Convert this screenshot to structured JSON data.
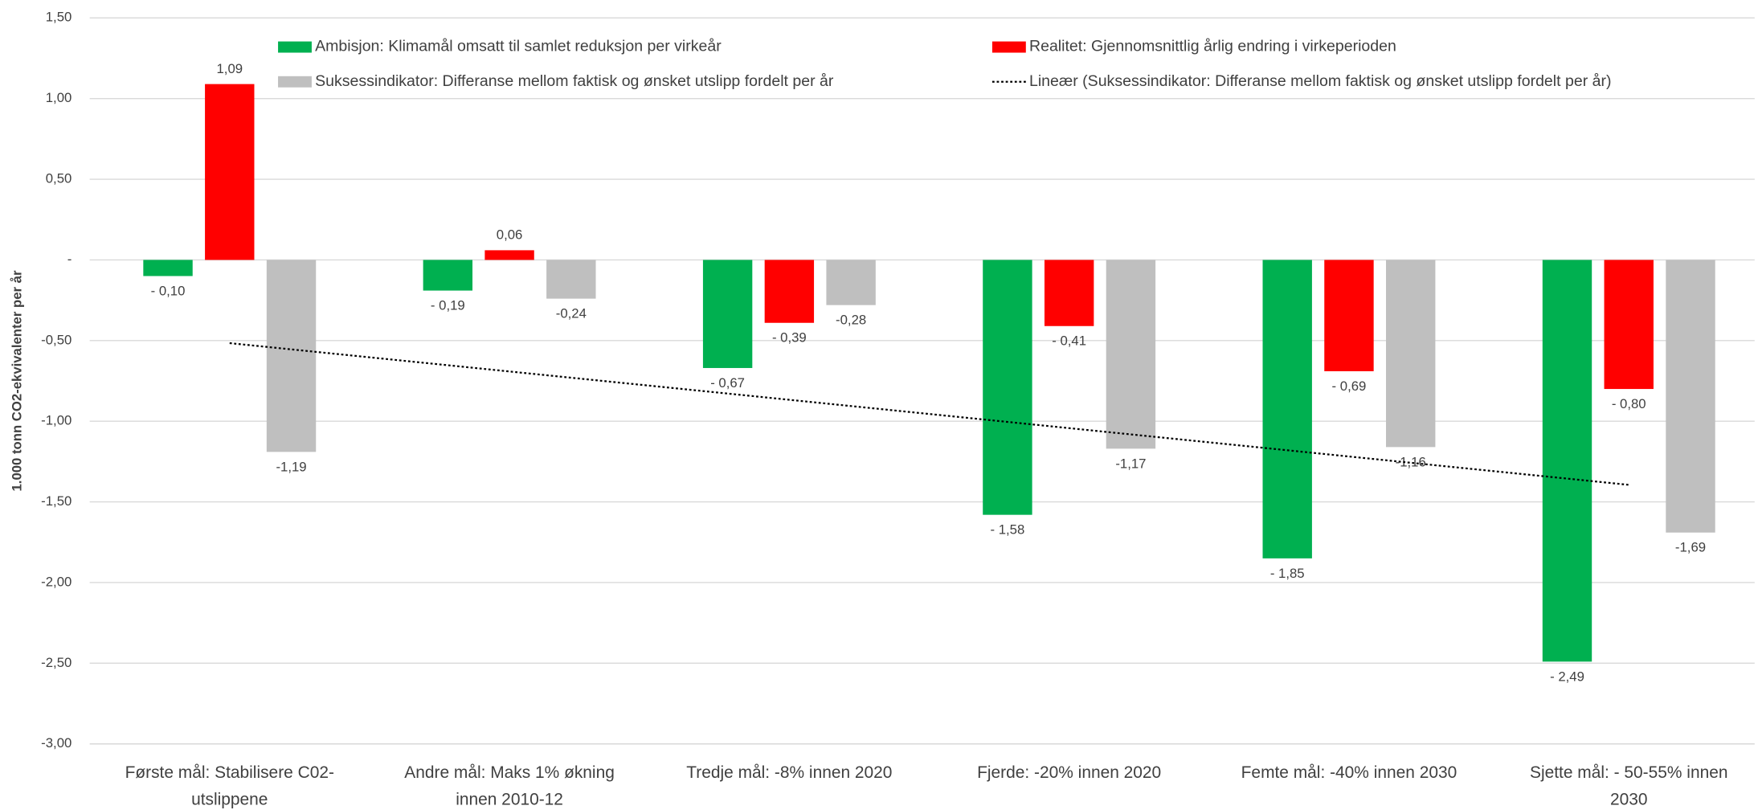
{
  "chart_data": {
    "type": "bar",
    "y_axis_label": "1.000 tonn CO2-ekvivalenter per år",
    "categories": [
      "Første mål: Stabilisere C02-utslippene",
      "Andre mål: Maks 1% økning innen 2010-12",
      "Tredje mål: -8% innen 2020",
      "Fjerde: -20% innen 2020",
      "Femte mål: -40% innen 2030",
      "Sjette mål: - 50-55% innen 2030"
    ],
    "series": [
      {
        "name": "Ambisjon: Klimamål omsatt til samlet reduksjon per virkeår",
        "color": "#00b050",
        "values": [
          -0.1,
          -0.19,
          -0.67,
          -1.58,
          -1.85,
          -2.49
        ],
        "value_labels": [
          "- 0,10",
          "- 0,19",
          "- 0,67",
          "- 1,58",
          "- 1,85",
          "- 2,49"
        ]
      },
      {
        "name": "Realitet: Gjennomsnittlig årlig endring i virkeperioden",
        "color": "#ff0000",
        "values": [
          1.09,
          0.06,
          -0.39,
          -0.41,
          -0.69,
          -0.8
        ],
        "value_labels": [
          "1,09",
          "0,06",
          "- 0,39",
          "- 0,41",
          "- 0,69",
          "- 0,80"
        ]
      },
      {
        "name": "Suksessindikator: Differanse mellom faktisk og ønsket utslipp fordelt per år",
        "color": "#bfbfbf",
        "values": [
          -1.19,
          -0.24,
          -0.28,
          -1.17,
          -1.16,
          -1.69
        ],
        "value_labels": [
          "-1,19",
          "-0,24",
          "-0,28",
          "-1,17",
          "-1,16",
          "-1,69"
        ]
      }
    ],
    "trendline": {
      "name": "Lineær (Suksessindikator: Differanse mellom faktisk og ønsket utslipp fordelt per år)",
      "type": "linear",
      "color": "#000000",
      "style": "dotted"
    },
    "ylim": [
      -3,
      1.5
    ],
    "yticks": [
      {
        "value": -3,
        "label": "-3,00"
      },
      {
        "value": -2.5,
        "label": "-2,50"
      },
      {
        "value": -2,
        "label": "-2,00"
      },
      {
        "value": -1.5,
        "label": "-1,50"
      },
      {
        "value": -1,
        "label": "-1,00"
      },
      {
        "value": -0.5,
        "label": "-0,50"
      },
      {
        "value": 0,
        "label": "-"
      },
      {
        "value": 0.5,
        "label": "0,50"
      },
      {
        "value": 1,
        "label": "1,00"
      },
      {
        "value": 1.5,
        "label": "1,50"
      }
    ],
    "grid": true,
    "legend": "top"
  }
}
